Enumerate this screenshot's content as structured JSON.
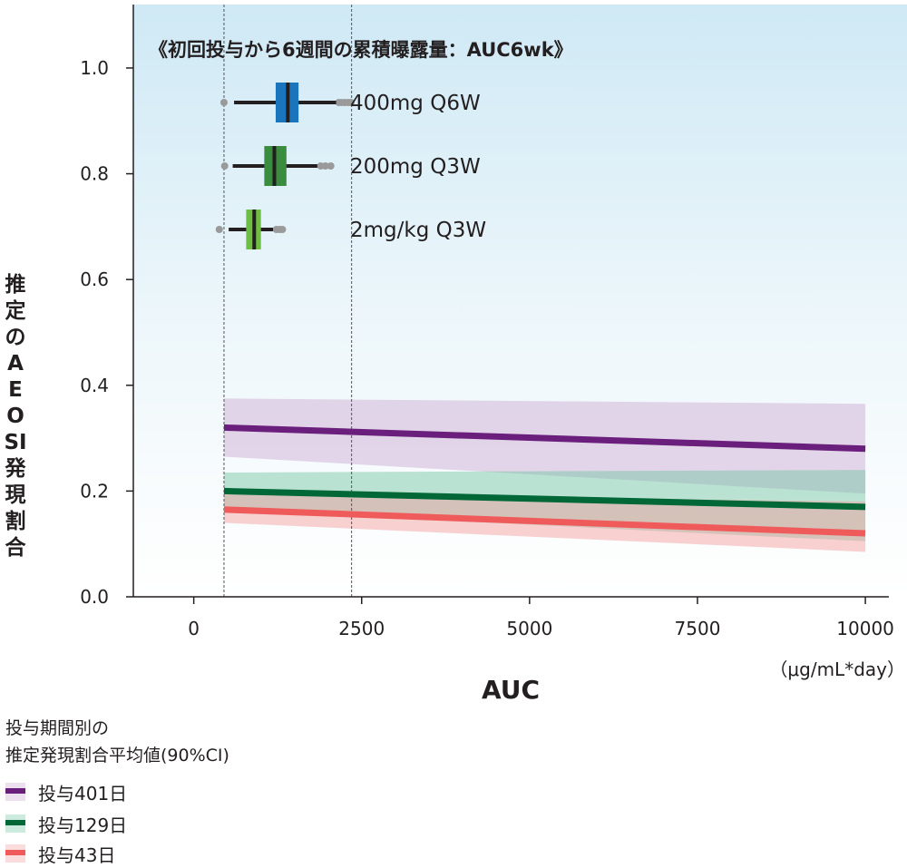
{
  "chart_data": {
    "type": "line",
    "inset_title": "《初回投与から6週間の累積曝露量：AUC6wk》",
    "inset_boxes": [
      {
        "label": "400mg Q6W",
        "color": "#1b75bc",
        "whisker": [
          600,
          2120
        ],
        "box": [
          1220,
          1560
        ],
        "median": 1400,
        "outliers": [
          450,
          2160,
          2200,
          2250,
          2300,
          2340
        ]
      },
      {
        "label": "200mg Q3W",
        "color": "#3a8d3f",
        "whisker": [
          580,
          1840
        ],
        "box": [
          1050,
          1380
        ],
        "median": 1200,
        "outliers": [
          460,
          1890,
          1960,
          2040
        ]
      },
      {
        "label": "2mg/kg Q3W",
        "color": "#6fbe44",
        "whisker": [
          520,
          1180
        ],
        "box": [
          780,
          1000
        ],
        "median": 900,
        "outliers": [
          380,
          1230,
          1280,
          1320
        ]
      }
    ],
    "vlines": [
      450,
      2350
    ],
    "xlabel": "AUC",
    "xunit": "（μg/mL*day）",
    "ylabel": "推定のAEOSI発現割合",
    "xlim": [
      -900,
      10350
    ],
    "ylim": [
      0,
      1.12
    ],
    "xticks": [
      0,
      2500,
      5000,
      7500,
      10000
    ],
    "xtick_labels": [
      "0",
      "2500",
      "5000",
      "7500",
      "10000"
    ],
    "yticks": [
      0.0,
      0.2,
      0.4,
      0.6,
      0.8,
      1.0
    ],
    "ytick_labels": [
      "0.0",
      "0.2",
      "0.4",
      "0.6",
      "0.8",
      "1.0"
    ],
    "series": [
      {
        "name": "投与401日",
        "color": "#6b1f7c",
        "band_color": "#c9a6d1",
        "x": [
          450,
          10000
        ],
        "y": [
          0.32,
          0.28
        ],
        "lower": [
          0.265,
          0.195
        ],
        "upper": [
          0.375,
          0.365
        ]
      },
      {
        "name": "投与129日",
        "color": "#006837",
        "band_color": "#6fc3a0",
        "x": [
          450,
          10000
        ],
        "y": [
          0.2,
          0.17
        ],
        "lower": [
          0.165,
          0.105
        ],
        "upper": [
          0.235,
          0.24
        ]
      },
      {
        "name": "投与43日",
        "color": "#ef5b5b",
        "band_color": "#f39a9a",
        "x": [
          450,
          10000
        ],
        "y": [
          0.165,
          0.12
        ],
        "lower": [
          0.14,
          0.085
        ],
        "upper": [
          0.195,
          0.18
        ]
      }
    ],
    "legend_title": [
      "投与期間別の",
      "推定発現割合平均値(90%CI)"
    ],
    "background": "sky-blue gradient"
  }
}
